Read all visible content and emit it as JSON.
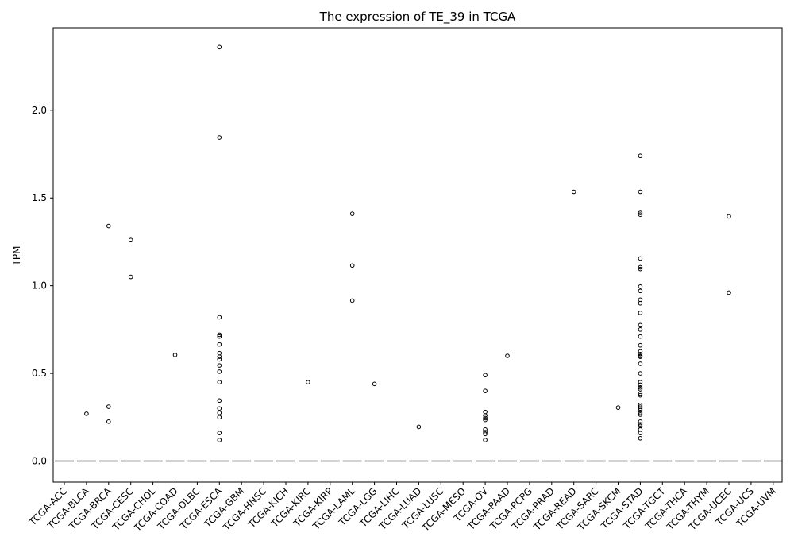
{
  "chart_data": {
    "type": "box",
    "title": "The expression of TE_39 in TCGA",
    "xlabel": "",
    "ylabel": "TPM",
    "ylim": [
      -0.12,
      2.47
    ],
    "yticks": [
      0.0,
      0.5,
      1.0,
      1.5,
      2.0
    ],
    "ytick_labels": [
      "0.0",
      "0.5",
      "1.0",
      "1.5",
      "2.0"
    ],
    "grid": false,
    "colors": {
      "median": "#555555",
      "outlier_edge": "#000000",
      "axes": "#000000"
    },
    "categories": [
      "TCGA-ACC",
      "TCGA-BLCA",
      "TCGA-BRCA",
      "TCGA-CESC",
      "TCGA-CHOL",
      "TCGA-COAD",
      "TCGA-DLBC",
      "TCGA-ESCA",
      "TCGA-GBM",
      "TCGA-HNSC",
      "TCGA-KICH",
      "TCGA-KIRC",
      "TCGA-KIRP",
      "TCGA-LAML",
      "TCGA-LGG",
      "TCGA-LIHC",
      "TCGA-LUAD",
      "TCGA-LUSC",
      "TCGA-MESO",
      "TCGA-OV",
      "TCGA-PAAD",
      "TCGA-PCPG",
      "TCGA-PRAD",
      "TCGA-READ",
      "TCGA-SARC",
      "TCGA-SKCM",
      "TCGA-STAD",
      "TCGA-TGCT",
      "TCGA-THCA",
      "TCGA-THYM",
      "TCGA-UCEC",
      "TCGA-UCS",
      "TCGA-UVM"
    ],
    "medians": [
      0,
      0,
      0,
      0,
      0,
      0,
      0,
      0,
      0,
      0,
      0,
      0,
      0,
      0,
      0,
      0,
      0,
      0,
      0,
      0,
      0,
      0,
      0,
      0,
      0,
      0,
      0,
      0,
      0,
      0,
      0,
      0,
      0
    ],
    "outliers": [
      [],
      [
        0.27
      ],
      [
        1.34,
        0.31,
        0.225
      ],
      [
        1.26,
        1.05
      ],
      [],
      [
        0.605
      ],
      [],
      [
        2.36,
        1.845,
        0.82,
        0.72,
        0.71,
        0.665,
        0.615,
        0.595,
        0.58,
        0.545,
        0.51,
        0.45,
        0.345,
        0.3,
        0.275,
        0.25,
        0.16,
        0.12
      ],
      [],
      [],
      [],
      [
        0.45
      ],
      [],
      [
        1.41,
        1.115,
        0.915
      ],
      [
        0.44
      ],
      [],
      [
        0.195
      ],
      [],
      [],
      [
        0.49,
        0.4,
        0.28,
        0.26,
        0.245,
        0.235,
        0.18,
        0.165,
        0.155,
        0.12
      ],
      [
        0.6
      ],
      [],
      [],
      [
        1.535
      ],
      [],
      [
        0.305
      ],
      [
        1.74,
        1.535,
        1.415,
        1.405,
        1.155,
        1.105,
        1.095,
        0.995,
        0.97,
        0.92,
        0.9,
        0.845,
        0.775,
        0.75,
        0.71,
        0.66,
        0.625,
        0.61,
        0.6,
        0.595,
        0.555,
        0.5,
        0.45,
        0.435,
        0.42,
        0.41,
        0.385,
        0.375,
        0.32,
        0.31,
        0.3,
        0.29,
        0.275,
        0.265,
        0.225,
        0.21,
        0.2,
        0.18,
        0.16,
        0.13
      ],
      [],
      [],
      [],
      [
        1.395,
        0.96
      ],
      [],
      []
    ]
  }
}
